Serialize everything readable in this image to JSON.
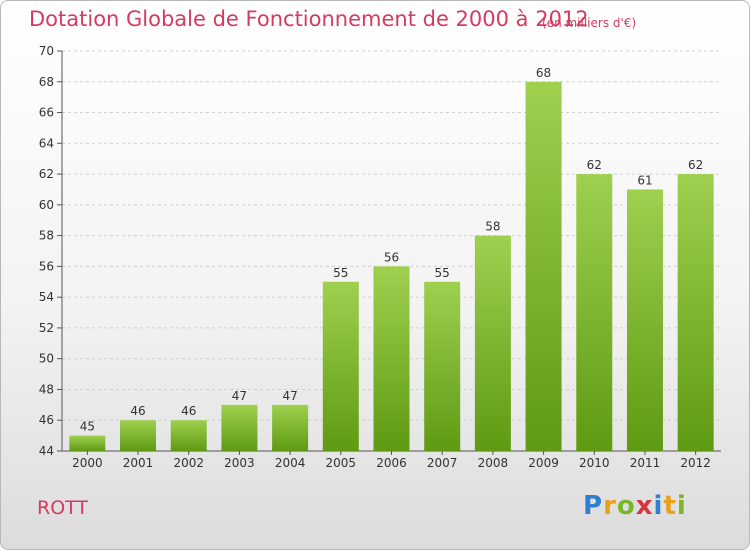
{
  "header": {
    "title": "Dotation Globale de Fonctionnement de 2000 à 2012",
    "subtitle": "(en milliers d'€)"
  },
  "footer": {
    "commune": "ROTT",
    "logo": "Proxiti"
  },
  "colors": {
    "title": "#d43b61",
    "bar_top": "#9fd04f",
    "bar_bottom": "#5e9a12"
  },
  "chart_data": {
    "type": "bar",
    "title": "Dotation Globale de Fonctionnement de 2000 à 2012",
    "subtitle": "(en milliers d'€)",
    "xlabel": "",
    "ylabel": "",
    "categories": [
      "2000",
      "2001",
      "2002",
      "2003",
      "2004",
      "2005",
      "2006",
      "2007",
      "2008",
      "2009",
      "2010",
      "2011",
      "2012"
    ],
    "values": [
      45,
      46,
      46,
      47,
      47,
      55,
      56,
      55,
      58,
      68,
      62,
      61,
      62
    ],
    "ylim": [
      44,
      70
    ],
    "yticks": [
      44,
      46,
      48,
      50,
      52,
      54,
      56,
      58,
      60,
      62,
      64,
      66,
      68,
      70
    ],
    "grid": "horizontal-dashed",
    "legend": "none"
  }
}
